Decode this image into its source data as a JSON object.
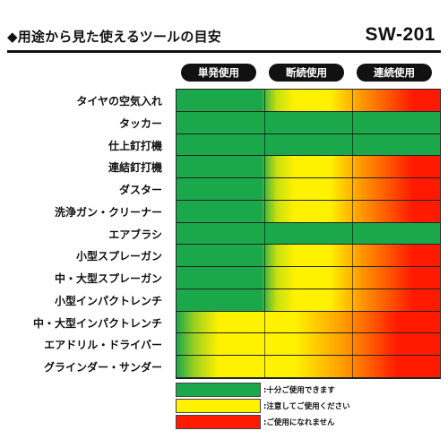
{
  "header": {
    "title": "◆用途から見た使えるツールの目安",
    "model": "SW-201"
  },
  "columns": [
    "単発使用",
    "断続使用",
    "連続使用"
  ],
  "colors": {
    "green": "#1aa84a",
    "yellow": "#fff200",
    "orange": "#ff9900",
    "red": "#ff1a00"
  },
  "rows": [
    {
      "label": "タイヤの空気入れ",
      "pattern": "green-yellow-red"
    },
    {
      "label": "タッカー",
      "pattern": "green"
    },
    {
      "label": "仕上釘打機",
      "pattern": "green"
    },
    {
      "label": "連結釘打機",
      "pattern": "green-yellow-red"
    },
    {
      "label": "ダスター",
      "pattern": "green-yellow-red"
    },
    {
      "label": "洗浄ガン・クリーナー",
      "pattern": "green-yellow-red"
    },
    {
      "label": "エアブラシ",
      "pattern": "green"
    },
    {
      "label": "小型スプレーガン",
      "pattern": "green-yellow-red"
    },
    {
      "label": "中・大型スプレーガン",
      "pattern": "green-yellow-red"
    },
    {
      "label": "小型インパクトレンチ",
      "pattern": "green-yellow-red"
    },
    {
      "label": "中・大型インパクトレンチ",
      "pattern": "green-early-yellow-red"
    },
    {
      "label": "エアドリル・ドライバー",
      "pattern": "green-early-yellow-red"
    },
    {
      "label": "グラインダー・サンダー",
      "pattern": "green-early-yellow-red"
    }
  ],
  "legend": [
    {
      "color": "green",
      "text": ":十分ご使用できます"
    },
    {
      "color": "yellow",
      "text": ":注意してご使用ください"
    },
    {
      "color": "red",
      "text": ":ご使用になれません"
    }
  ]
}
